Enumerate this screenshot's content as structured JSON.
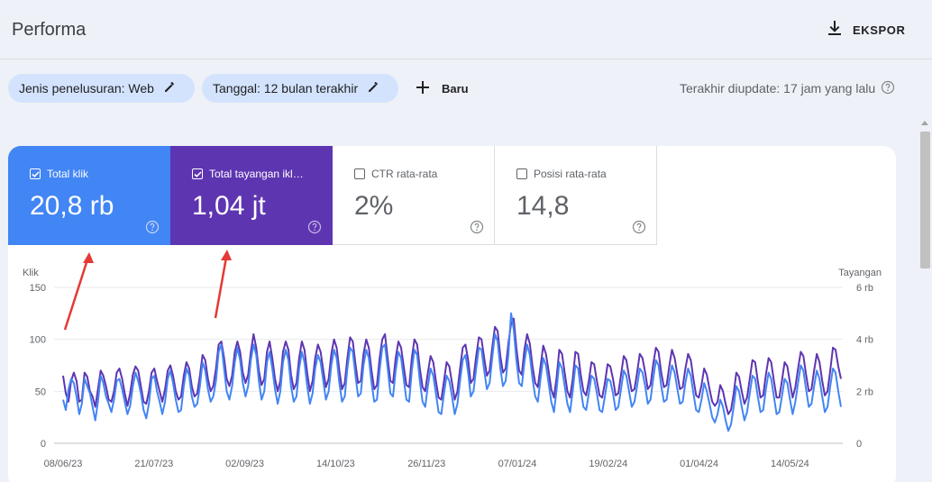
{
  "header": {
    "title": "Performa",
    "export_label": "EKSPOR"
  },
  "filters": {
    "search_type": "Jenis penelusuran: Web",
    "date": "Tanggal: 12 bulan terakhir",
    "new_label": "Baru",
    "last_updated": "Terakhir diupdate: 17 jam yang lalu"
  },
  "metrics": [
    {
      "label": "Total klik",
      "value": "20,8 rb",
      "checked": true,
      "color": "#4285f4"
    },
    {
      "label": "Total tayangan ikl…",
      "value": "1,04 jt",
      "checked": true,
      "color": "#5e35b1"
    },
    {
      "label": "CTR rata-rata",
      "value": "2%",
      "checked": false
    },
    {
      "label": "Posisi rata-rata",
      "value": "14,8",
      "checked": false
    }
  ],
  "chart_data": {
    "type": "line",
    "left_axis": {
      "label": "Klik",
      "ticks": [
        "150",
        "100",
        "50",
        "0"
      ],
      "range": [
        0,
        150
      ]
    },
    "right_axis": {
      "label": "Tayangan",
      "ticks": [
        "6 rb",
        "4 rb",
        "2 rb",
        "0"
      ],
      "range": [
        0,
        6000
      ]
    },
    "x_tick_labels": [
      "08/06/23",
      "21/07/23",
      "02/09/23",
      "14/10/23",
      "26/11/23",
      "07/01/24",
      "19/02/24",
      "01/04/24",
      "14/05/24"
    ],
    "grid": true,
    "series": [
      {
        "color": "#4285f4",
        "axis": "left",
        "start": "2023-06-08",
        "step": "1 day",
        "values": [
          42,
          32,
          52,
          62,
          58,
          45,
          28,
          38,
          62,
          55,
          48,
          35,
          22,
          40,
          65,
          58,
          45,
          38,
          30,
          42,
          60,
          62,
          52,
          40,
          28,
          36,
          55,
          68,
          60,
          48,
          32,
          24,
          38,
          62,
          65,
          50,
          40,
          28,
          40,
          62,
          70,
          58,
          42,
          30,
          32,
          55,
          72,
          65,
          45,
          35,
          38,
          55,
          78,
          70,
          52,
          40,
          45,
          60,
          88,
          95,
          72,
          50,
          42,
          55,
          78,
          92,
          80,
          58,
          45,
          55,
          80,
          95,
          85,
          60,
          42,
          50,
          78,
          88,
          72,
          52,
          38,
          50,
          78,
          90,
          80,
          55,
          40,
          45,
          72,
          88,
          78,
          55,
          38,
          48,
          72,
          85,
          78,
          60,
          42,
          50,
          75,
          90,
          82,
          58,
          40,
          45,
          72,
          92,
          88,
          65,
          45,
          48,
          75,
          90,
          82,
          58,
          40,
          42,
          70,
          92,
          95,
          72,
          48,
          45,
          70,
          88,
          82,
          62,
          42,
          40,
          70,
          90,
          85,
          60,
          40,
          35,
          55,
          72,
          65,
          48,
          30,
          28,
          48,
          65,
          60,
          45,
          28,
          38,
          60,
          80,
          85,
          68,
          45,
          50,
          72,
          92,
          90,
          70,
          52,
          58,
          82,
          105,
          98,
          72,
          55,
          60,
          85,
          125,
          110,
          80,
          58,
          55,
          78,
          95,
          85,
          62,
          45,
          40,
          62,
          82,
          75,
          58,
          40,
          30,
          52,
          78,
          72,
          55,
          38,
          30,
          50,
          75,
          72,
          52,
          35,
          32,
          48,
          65,
          62,
          48,
          32,
          30,
          45,
          62,
          60,
          48,
          32,
          35,
          52,
          70,
          65,
          50,
          35,
          40,
          55,
          72,
          68,
          55,
          38,
          42,
          62,
          80,
          75,
          55,
          40,
          42,
          60,
          75,
          68,
          52,
          38,
          40,
          58,
          72,
          65,
          48,
          32,
          30,
          42,
          58,
          50,
          38,
          25,
          20,
          28,
          42,
          35,
          22,
          12,
          18,
          35,
          55,
          50,
          35,
          22,
          30,
          48,
          65,
          62,
          45,
          30,
          32,
          52,
          68,
          62,
          45,
          28,
          30,
          45,
          62,
          58,
          42,
          28,
          40,
          58,
          75,
          70,
          52,
          35,
          38,
          55,
          70,
          62,
          45,
          30,
          35,
          55,
          72,
          68,
          50,
          35
        ],
        "note": "daily clicks, left axis"
      },
      {
        "color": "#5e35b1",
        "axis": "left",
        "start": "2023-06-08",
        "step": "1 day",
        "values": [
          65,
          48,
          40,
          60,
          68,
          60,
          40,
          42,
          68,
          64,
          50,
          45,
          35,
          52,
          70,
          65,
          55,
          42,
          40,
          50,
          68,
          72,
          62,
          48,
          36,
          48,
          66,
          74,
          70,
          55,
          40,
          38,
          50,
          68,
          72,
          60,
          50,
          40,
          52,
          70,
          75,
          65,
          50,
          42,
          45,
          65,
          78,
          72,
          55,
          45,
          48,
          65,
          85,
          80,
          62,
          50,
          55,
          72,
          95,
          98,
          82,
          62,
          55,
          65,
          88,
          98,
          88,
          68,
          58,
          66,
          88,
          105,
          92,
          70,
          56,
          62,
          88,
          98,
          82,
          62,
          50,
          60,
          88,
          98,
          90,
          66,
          52,
          58,
          82,
          98,
          90,
          68,
          50,
          60,
          82,
          95,
          88,
          70,
          54,
          62,
          86,
          100,
          92,
          70,
          52,
          58,
          82,
          102,
          98,
          76,
          58,
          60,
          86,
          100,
          92,
          70,
          52,
          56,
          82,
          100,
          105,
          82,
          60,
          58,
          82,
          98,
          92,
          74,
          56,
          54,
          82,
          100,
          95,
          72,
          54,
          50,
          68,
          84,
          78,
          60,
          44,
          42,
          60,
          78,
          74,
          58,
          42,
          50,
          72,
          92,
          95,
          80,
          58,
          62,
          84,
          102,
          100,
          82,
          65,
          70,
          92,
          112,
          108,
          84,
          68,
          72,
          96,
          115,
          120,
          92,
          70,
          66,
          90,
          105,
          96,
          74,
          58,
          54,
          74,
          94,
          86,
          70,
          52,
          44,
          64,
          90,
          86,
          68,
          50,
          44,
          62,
          88,
          86,
          66,
          50,
          46,
          60,
          78,
          76,
          60,
          46,
          44,
          58,
          76,
          74,
          62,
          46,
          48,
          66,
          84,
          80,
          64,
          50,
          52,
          68,
          86,
          82,
          68,
          52,
          56,
          76,
          92,
          88,
          68,
          54,
          56,
          74,
          90,
          82,
          66,
          52,
          54,
          72,
          86,
          80,
          62,
          46,
          44,
          56,
          72,
          66,
          52,
          40,
          36,
          40,
          56,
          50,
          38,
          28,
          32,
          48,
          68,
          64,
          50,
          38,
          44,
          62,
          80,
          78,
          60,
          44,
          46,
          66,
          82,
          78,
          60,
          44,
          44,
          60,
          78,
          74,
          58,
          44,
          54,
          72,
          88,
          84,
          66,
          50,
          52,
          70,
          86,
          78,
          60,
          46,
          50,
          70,
          92,
          90,
          74,
          62
        ]
      }
    ]
  },
  "colors": {
    "accent_blue": "#4285f4",
    "accent_purple": "#5e35b1",
    "chip_bg": "#d3e3fd",
    "arrow": "#e53935"
  }
}
